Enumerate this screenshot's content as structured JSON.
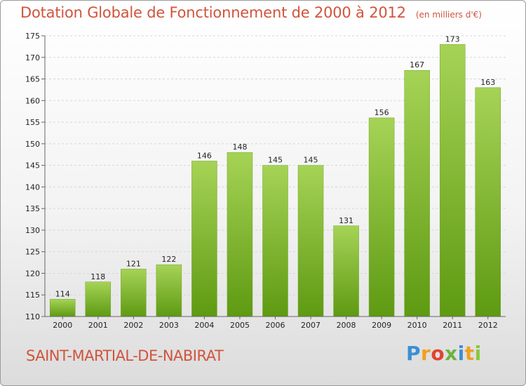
{
  "header": {
    "title": "Dotation Globale de Fonctionnement de 2000 à 2012",
    "unit_note": "(en milliers d'€)"
  },
  "footer": {
    "commune": "SAINT-MARTIAL-DE-NABIRAT",
    "logo": "Proxiti"
  },
  "colors": {
    "bar_light": "#a6d356",
    "bar_dark": "#5e9a12",
    "title": "#d0543c"
  },
  "chart_data": {
    "type": "bar",
    "title": "Dotation Globale de Fonctionnement de 2000 à 2012",
    "subtitle": "(en milliers d'€)",
    "categories": [
      "2000",
      "2001",
      "2002",
      "2003",
      "2004",
      "2005",
      "2006",
      "2007",
      "2008",
      "2009",
      "2010",
      "2011",
      "2012"
    ],
    "values": [
      114,
      118,
      121,
      122,
      146,
      148,
      145,
      145,
      131,
      156,
      167,
      173,
      163
    ],
    "ylim": [
      110,
      175
    ],
    "yticks": [
      110,
      115,
      120,
      125,
      130,
      135,
      140,
      145,
      150,
      155,
      160,
      165,
      170,
      175
    ],
    "grid": true,
    "legend": "none"
  }
}
